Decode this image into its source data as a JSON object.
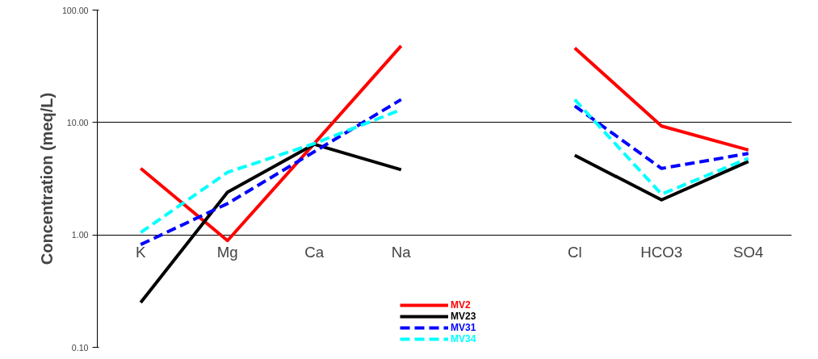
{
  "chart_data": {
    "type": "line",
    "ylabel": "Concentration (meq/L)",
    "categories": [
      "K",
      "Mg",
      "Ca",
      "Na",
      null,
      "Cl",
      "HCO3",
      "SO4"
    ],
    "series": [
      {
        "name": "MV2",
        "color": "#ff0000",
        "line_style": "solid",
        "values": [
          3.9,
          0.89,
          6.5,
          48,
          null,
          46,
          9.3,
          5.7
        ]
      },
      {
        "name": "MV23",
        "color": "#000000",
        "line_style": "solid",
        "values": [
          0.25,
          2.4,
          6.4,
          3.8,
          null,
          5.1,
          2.05,
          4.5
        ]
      },
      {
        "name": "MV31",
        "color": "#0000ff",
        "line_style": "dashed",
        "values": [
          0.82,
          1.9,
          5.5,
          16,
          null,
          14,
          3.9,
          5.3
        ]
      },
      {
        "name": "MV34",
        "color": "#00ffff",
        "line_style": "dashed",
        "values": [
          1.05,
          3.6,
          6.5,
          13,
          null,
          16,
          2.3,
          4.8
        ]
      }
    ],
    "ylim": [
      0.1,
      100
    ],
    "yticks": [
      {
        "value": 0.1,
        "label": "0.10"
      },
      {
        "value": 1,
        "label": "1.00"
      },
      {
        "value": 10,
        "label": "10.00"
      },
      {
        "value": 100,
        "label": "100.00"
      }
    ],
    "log": true,
    "grid": "y",
    "legend": "bottom",
    "marker": "none"
  }
}
